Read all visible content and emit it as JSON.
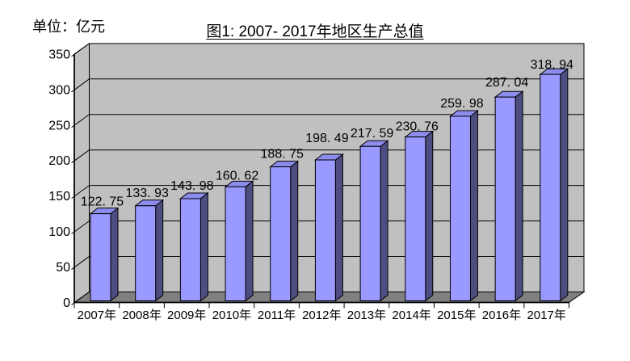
{
  "chart_data": {
    "type": "bar",
    "style": "excel-3d-column",
    "title": "图1: 2007- 2017年地区生产总值",
    "unit_label": "单位：亿元",
    "categories": [
      "2007年",
      "2008年",
      "2009年",
      "2010年",
      "2011年",
      "2012年",
      "2013年",
      "2014年",
      "2015年",
      "2016年",
      "2017年"
    ],
    "values": [
      122.75,
      133.93,
      143.98,
      160.62,
      188.75,
      198.49,
      217.59,
      230.76,
      259.98,
      287.04,
      318.94
    ],
    "data_labels": [
      "122. 75",
      "133. 93",
      "143. 98",
      "160. 62",
      "188. 75",
      "198. 49",
      "217. 59",
      "230. 76",
      "259. 98",
      "287. 04",
      "318. 94"
    ],
    "xlabel": "",
    "ylabel": "",
    "ylim": [
      0,
      350
    ],
    "yticks": [
      0,
      50,
      100,
      150,
      200,
      250,
      300,
      350
    ],
    "grid": true,
    "legend": "none",
    "colors": {
      "background": "#FFFFFF",
      "wall": "#C0C0C0",
      "floor": "#808080",
      "bar_front": "#9999FF",
      "bar_top": "#8C8CEC",
      "bar_side": "#4D4D80",
      "outline": "#000000",
      "text": "#000000"
    }
  }
}
